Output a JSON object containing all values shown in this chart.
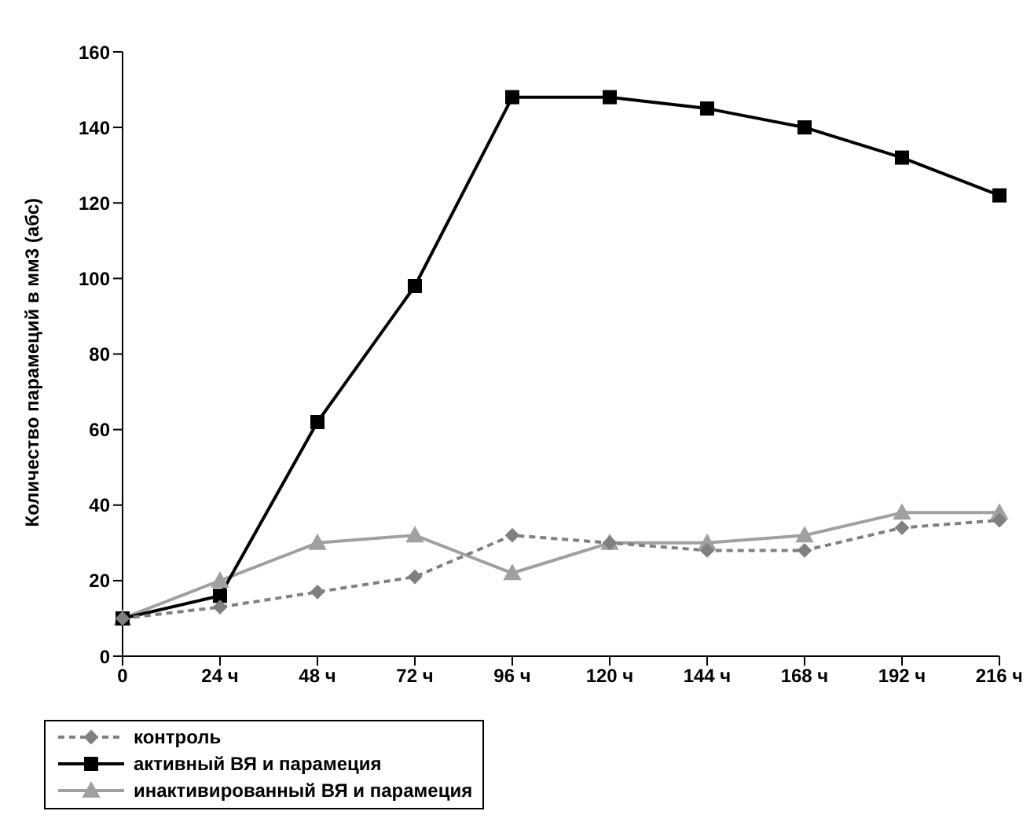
{
  "chart_data": {
    "type": "line",
    "ylabel": "Количество парамеций в мм3 (абс)",
    "categories": [
      "0",
      "24 ч",
      "48 ч",
      "72 ч",
      "96 ч",
      "120 ч",
      "144 ч",
      "168 ч",
      "192 ч",
      "216 ч"
    ],
    "series": [
      {
        "name": "контроль",
        "color": "#808080",
        "line_style": "dashed",
        "marker": "diamond",
        "values": [
          10,
          13,
          17,
          21,
          32,
          30,
          28,
          28,
          34,
          36
        ]
      },
      {
        "name": "активный ВЯ и парамеция",
        "color": "#000000",
        "line_style": "solid",
        "marker": "square",
        "values": [
          10,
          16,
          62,
          98,
          148,
          148,
          145,
          140,
          132,
          122
        ]
      },
      {
        "name": "инактивированный ВЯ и парамеция",
        "color": "#a0a0a0",
        "line_style": "solid",
        "marker": "triangle",
        "values": [
          10,
          20,
          30,
          32,
          22,
          30,
          30,
          32,
          38,
          38
        ]
      }
    ],
    "ylim": [
      0,
      160
    ],
    "yticks": [
      0,
      20,
      40,
      60,
      80,
      100,
      120,
      140,
      160
    ],
    "grid": false,
    "legend": "bottom"
  }
}
